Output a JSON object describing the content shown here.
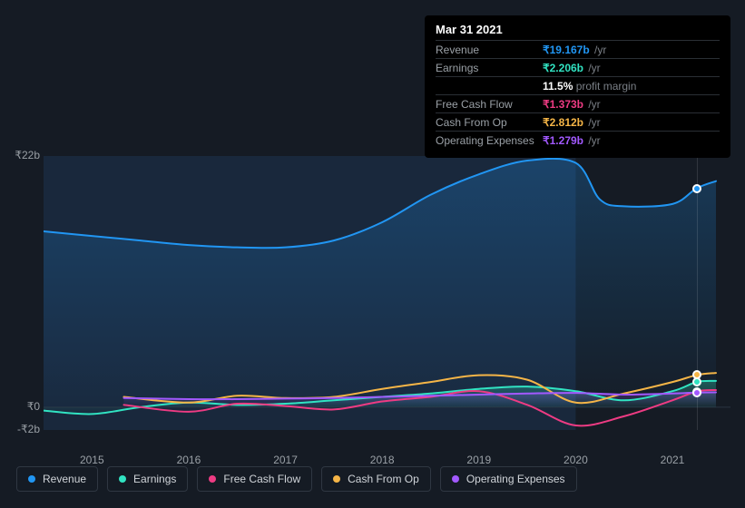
{
  "chart": {
    "background_color": "#151b24",
    "y_axis": {
      "ticks": [
        {
          "label": "₹22b",
          "value": 22
        },
        {
          "label": "₹0",
          "value": 0
        },
        {
          "label": "-₹2b",
          "value": -2
        }
      ],
      "min": -2,
      "max": 22
    },
    "x_axis": {
      "years": [
        "2015",
        "2016",
        "2017",
        "2018",
        "2019",
        "2020",
        "2021"
      ],
      "x_min": 2014.5,
      "x_max": 2021.6
    },
    "highlight": {
      "from": 2014.5,
      "to": 2020.0,
      "rgba": "rgba(40,80,130,0.25)"
    },
    "cursor_x": 2021.25,
    "series": [
      {
        "id": "revenue",
        "label": "Revenue",
        "color": "#2196f3",
        "area_fill_top": "rgba(33,150,243,0.25)",
        "area_fill_bottom": "rgba(33,150,243,0.02)",
        "points": [
          [
            2014.5,
            15.4
          ],
          [
            2015.0,
            15.0
          ],
          [
            2015.5,
            14.6
          ],
          [
            2016.0,
            14.2
          ],
          [
            2016.5,
            14.0
          ],
          [
            2017.0,
            14.0
          ],
          [
            2017.5,
            14.6
          ],
          [
            2018.0,
            16.2
          ],
          [
            2018.5,
            18.6
          ],
          [
            2019.0,
            20.4
          ],
          [
            2019.5,
            21.6
          ],
          [
            2020.0,
            21.4
          ],
          [
            2020.25,
            18.2
          ],
          [
            2020.5,
            17.6
          ],
          [
            2021.0,
            17.8
          ],
          [
            2021.25,
            19.167
          ],
          [
            2021.45,
            19.8
          ]
        ]
      },
      {
        "id": "earnings",
        "label": "Earnings",
        "color": "#31e3c2",
        "area_fill_top": "rgba(49,227,194,0.30)",
        "area_fill_bottom": "rgba(49,227,194,0.0)",
        "points": [
          [
            2014.5,
            -0.3
          ],
          [
            2015.0,
            -0.6
          ],
          [
            2015.5,
            0.0
          ],
          [
            2016.0,
            0.4
          ],
          [
            2016.5,
            0.2
          ],
          [
            2017.0,
            0.3
          ],
          [
            2017.5,
            0.6
          ],
          [
            2018.0,
            0.9
          ],
          [
            2018.5,
            1.2
          ],
          [
            2019.0,
            1.6
          ],
          [
            2019.5,
            1.8
          ],
          [
            2020.0,
            1.4
          ],
          [
            2020.5,
            0.6
          ],
          [
            2021.0,
            1.4
          ],
          [
            2021.25,
            2.206
          ],
          [
            2021.45,
            2.3
          ]
        ]
      },
      {
        "id": "fcf",
        "label": "Free Cash Flow",
        "color": "#ee3b83",
        "points": [
          [
            2015.33,
            0.2
          ],
          [
            2016.0,
            -0.4
          ],
          [
            2016.5,
            0.3
          ],
          [
            2017.0,
            0.1
          ],
          [
            2017.5,
            -0.2
          ],
          [
            2018.0,
            0.5
          ],
          [
            2018.5,
            0.9
          ],
          [
            2019.0,
            1.4
          ],
          [
            2019.5,
            0.2
          ],
          [
            2020.0,
            -1.6
          ],
          [
            2020.5,
            -0.8
          ],
          [
            2021.0,
            0.6
          ],
          [
            2021.25,
            1.373
          ],
          [
            2021.45,
            1.5
          ]
        ]
      },
      {
        "id": "cfo",
        "label": "Cash From Op",
        "color": "#f5b547",
        "points": [
          [
            2015.33,
            0.9
          ],
          [
            2016.0,
            0.4
          ],
          [
            2016.5,
            1.0
          ],
          [
            2017.0,
            0.8
          ],
          [
            2017.5,
            0.9
          ],
          [
            2018.0,
            1.6
          ],
          [
            2018.5,
            2.2
          ],
          [
            2019.0,
            2.8
          ],
          [
            2019.5,
            2.4
          ],
          [
            2020.0,
            0.4
          ],
          [
            2020.5,
            1.2
          ],
          [
            2021.0,
            2.2
          ],
          [
            2021.25,
            2.812
          ],
          [
            2021.45,
            3.0
          ]
        ]
      },
      {
        "id": "opex",
        "label": "Operating Expenses",
        "color": "#a259ff",
        "area_fill_top": "rgba(162,89,255,0.25)",
        "area_fill_bottom": "rgba(162,89,255,0.0)",
        "points": [
          [
            2015.33,
            0.8
          ],
          [
            2016.0,
            0.7
          ],
          [
            2016.5,
            0.7
          ],
          [
            2017.0,
            0.75
          ],
          [
            2017.5,
            0.8
          ],
          [
            2018.0,
            0.9
          ],
          [
            2018.5,
            1.0
          ],
          [
            2019.0,
            1.1
          ],
          [
            2019.5,
            1.2
          ],
          [
            2020.0,
            1.25
          ],
          [
            2020.5,
            1.1
          ],
          [
            2021.0,
            1.2
          ],
          [
            2021.25,
            1.279
          ],
          [
            2021.45,
            1.3
          ]
        ]
      }
    ]
  },
  "tooltip": {
    "date": "Mar 31 2021",
    "rows": [
      {
        "id": "revenue",
        "label": "Revenue",
        "value": "₹19.167b",
        "unit": "/yr",
        "color": "#2196f3"
      },
      {
        "id": "earnings",
        "label": "Earnings",
        "value": "₹2.206b",
        "unit": "/yr",
        "color": "#31e3c2",
        "sub": {
          "pct": "11.5%",
          "text": "profit margin"
        }
      },
      {
        "id": "fcf",
        "label": "Free Cash Flow",
        "value": "₹1.373b",
        "unit": "/yr",
        "color": "#ee3b83"
      },
      {
        "id": "cfo",
        "label": "Cash From Op",
        "value": "₹2.812b",
        "unit": "/yr",
        "color": "#f5b547"
      },
      {
        "id": "opex",
        "label": "Operating Expenses",
        "value": "₹1.279b",
        "unit": "/yr",
        "color": "#a259ff"
      }
    ]
  },
  "legend": [
    {
      "id": "revenue",
      "label": "Revenue",
      "color": "#2196f3"
    },
    {
      "id": "earnings",
      "label": "Earnings",
      "color": "#31e3c2"
    },
    {
      "id": "fcf",
      "label": "Free Cash Flow",
      "color": "#ee3b83"
    },
    {
      "id": "cfo",
      "label": "Cash From Op",
      "color": "#f5b547"
    },
    {
      "id": "opex",
      "label": "Operating Expenses",
      "color": "#a259ff"
    }
  ]
}
